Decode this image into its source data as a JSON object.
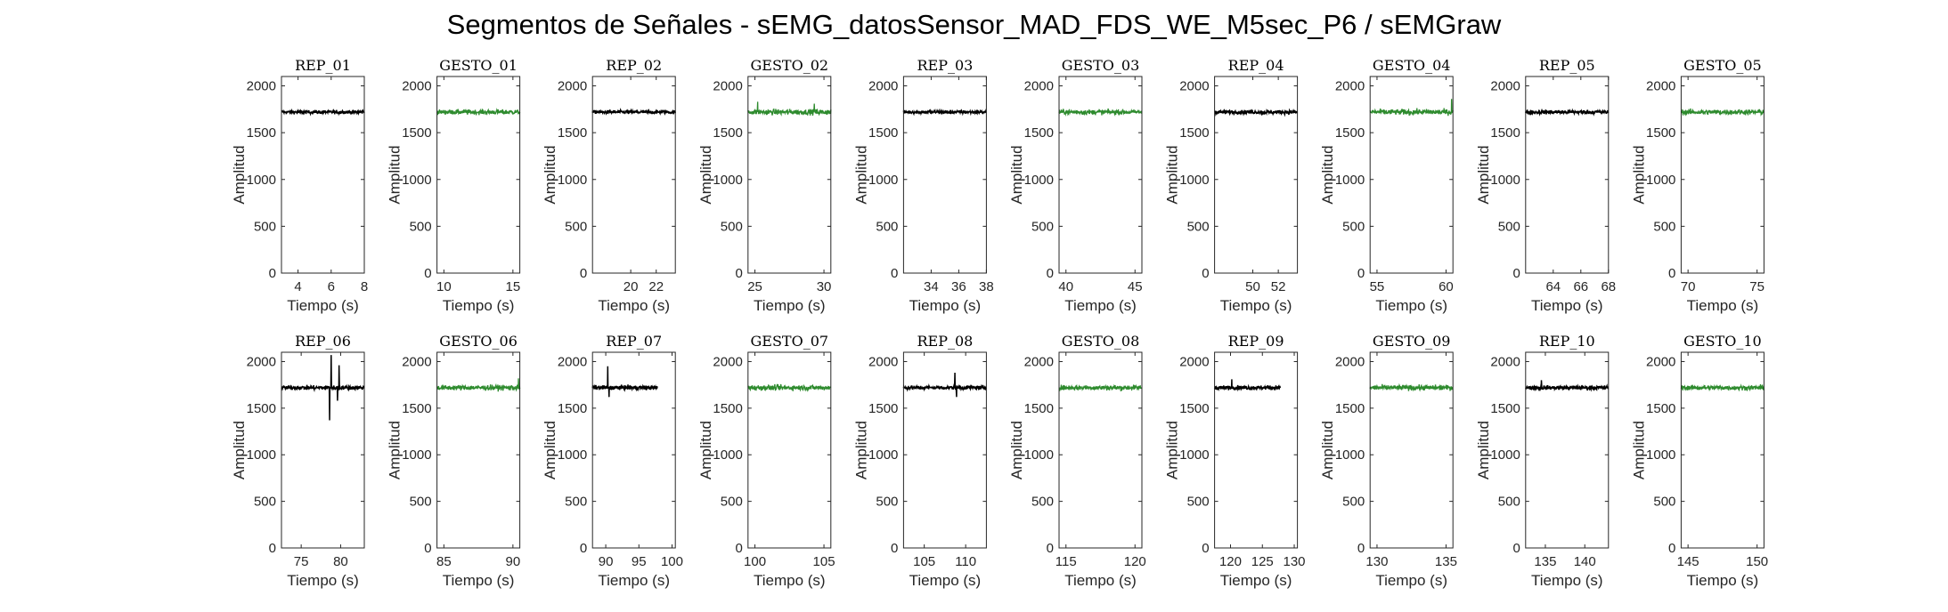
{
  "figure": {
    "title": "Segmentos de Señales - sEMG_datosSensor_MAD_FDS_WE_M5sec_P6 / sEMGraw"
  },
  "colors": {
    "rep": "#000000",
    "gesto": "#2e8b2e",
    "axis": "#262626"
  },
  "chart_data": [
    {
      "type": "line",
      "title": "REP_01",
      "kind": "rep",
      "xlabel": "Tiempo (s)",
      "ylabel": "Amplitud",
      "xlim": [
        3,
        8
      ],
      "ylim": [
        0,
        2100
      ],
      "xticks": [
        4,
        6,
        8
      ],
      "yticks": [
        0,
        500,
        1000,
        1500,
        2000
      ],
      "data_x": [
        3,
        8
      ],
      "mean": 1720,
      "noise": 20,
      "spikes": []
    },
    {
      "type": "line",
      "title": "GESTO_01",
      "kind": "gesto",
      "xlabel": "Tiempo (s)",
      "ylabel": "Amplitud",
      "xlim": [
        9.5,
        15.5
      ],
      "ylim": [
        0,
        2100
      ],
      "xticks": [
        10,
        15
      ],
      "yticks": [
        0,
        500,
        1000,
        1500,
        2000
      ],
      "data_x": [
        9.5,
        15.5
      ],
      "mean": 1720,
      "noise": 28,
      "spikes": []
    },
    {
      "type": "line",
      "title": "REP_02",
      "kind": "rep",
      "xlabel": "Tiempo (s)",
      "ylabel": "Amplitud",
      "xlim": [
        17,
        23.5
      ],
      "ylim": [
        0,
        2100
      ],
      "xticks": [
        20,
        22
      ],
      "yticks": [
        0,
        500,
        1000,
        1500,
        2000
      ],
      "data_x": [
        17,
        23.5
      ],
      "mean": 1720,
      "noise": 20,
      "spikes": []
    },
    {
      "type": "line",
      "title": "GESTO_02",
      "kind": "gesto",
      "xlabel": "Tiempo (s)",
      "ylabel": "Amplitud",
      "xlim": [
        24.5,
        30.5
      ],
      "ylim": [
        0,
        2100
      ],
      "xticks": [
        25,
        30
      ],
      "yticks": [
        0,
        500,
        1000,
        1500,
        2000
      ],
      "data_x": [
        24.5,
        30.5
      ],
      "mean": 1720,
      "noise": 32,
      "spikes": [
        {
          "x": 25.2,
          "y": 1830
        },
        {
          "x": 29.3,
          "y": 1810
        }
      ]
    },
    {
      "type": "line",
      "title": "REP_03",
      "kind": "rep",
      "xlabel": "Tiempo (s)",
      "ylabel": "Amplitud",
      "xlim": [
        32,
        38
      ],
      "ylim": [
        0,
        2100
      ],
      "xticks": [
        34,
        36,
        38
      ],
      "yticks": [
        0,
        500,
        1000,
        1500,
        2000
      ],
      "data_x": [
        32,
        38
      ],
      "mean": 1720,
      "noise": 20,
      "spikes": []
    },
    {
      "type": "line",
      "title": "GESTO_03",
      "kind": "gesto",
      "xlabel": "Tiempo (s)",
      "ylabel": "Amplitud",
      "xlim": [
        39.5,
        45.5
      ],
      "ylim": [
        0,
        2100
      ],
      "xticks": [
        40,
        45
      ],
      "yticks": [
        0,
        500,
        1000,
        1500,
        2000
      ],
      "data_x": [
        39.5,
        45.5
      ],
      "mean": 1720,
      "noise": 28,
      "spikes": []
    },
    {
      "type": "line",
      "title": "REP_04",
      "kind": "rep",
      "xlabel": "Tiempo (s)",
      "ylabel": "Amplitud",
      "xlim": [
        47,
        53.5
      ],
      "ylim": [
        0,
        2100
      ],
      "xticks": [
        50,
        52
      ],
      "yticks": [
        0,
        500,
        1000,
        1500,
        2000
      ],
      "data_x": [
        47,
        53.5
      ],
      "mean": 1720,
      "noise": 22,
      "spikes": []
    },
    {
      "type": "line",
      "title": "GESTO_04",
      "kind": "gesto",
      "xlabel": "Tiempo (s)",
      "ylabel": "Amplitud",
      "xlim": [
        54.5,
        60.5
      ],
      "ylim": [
        0,
        2100
      ],
      "xticks": [
        55,
        60
      ],
      "yticks": [
        0,
        500,
        1000,
        1500,
        2000
      ],
      "data_x": [
        54.5,
        60.5
      ],
      "mean": 1720,
      "noise": 32,
      "spikes": [
        {
          "x": 60.4,
          "y": 1860
        }
      ]
    },
    {
      "type": "line",
      "title": "REP_05",
      "kind": "rep",
      "xlabel": "Tiempo (s)",
      "ylabel": "Amplitud",
      "xlim": [
        62,
        68
      ],
      "ylim": [
        0,
        2100
      ],
      "xticks": [
        64,
        66,
        68
      ],
      "yticks": [
        0,
        500,
        1000,
        1500,
        2000
      ],
      "data_x": [
        62,
        68
      ],
      "mean": 1720,
      "noise": 24,
      "spikes": []
    },
    {
      "type": "line",
      "title": "GESTO_05",
      "kind": "gesto",
      "xlabel": "Tiempo (s)",
      "ylabel": "Amplitud",
      "xlim": [
        69.5,
        75.5
      ],
      "ylim": [
        0,
        2100
      ],
      "xticks": [
        70,
        75
      ],
      "yticks": [
        0,
        500,
        1000,
        1500,
        2000
      ],
      "data_x": [
        69.5,
        75.5
      ],
      "mean": 1720,
      "noise": 30,
      "spikes": []
    },
    {
      "type": "line",
      "title": "REP_06",
      "kind": "rep",
      "xlabel": "Tiempo (s)",
      "ylabel": "Amplitud",
      "xlim": [
        72.5,
        83
      ],
      "ylim": [
        0,
        2100
      ],
      "xticks": [
        75,
        80
      ],
      "yticks": [
        0,
        500,
        1000,
        1500,
        2000
      ],
      "data_x": [
        72.5,
        83
      ],
      "mean": 1720,
      "noise": 24,
      "spikes": [
        {
          "x": 78.6,
          "y": 1370
        },
        {
          "x": 78.8,
          "y": 2070
        },
        {
          "x": 79.6,
          "y": 1580
        },
        {
          "x": 79.8,
          "y": 1960
        }
      ]
    },
    {
      "type": "line",
      "title": "GESTO_06",
      "kind": "gesto",
      "xlabel": "Tiempo (s)",
      "ylabel": "Amplitud",
      "xlim": [
        84.5,
        90.5
      ],
      "ylim": [
        0,
        2100
      ],
      "xticks": [
        85,
        90
      ],
      "yticks": [
        0,
        500,
        1000,
        1500,
        2000
      ],
      "data_x": [
        84.5,
        90.5
      ],
      "mean": 1720,
      "noise": 30,
      "spikes": [
        {
          "x": 90.4,
          "y": 1820
        }
      ]
    },
    {
      "type": "line",
      "title": "REP_07",
      "kind": "rep",
      "xlabel": "Tiempo (s)",
      "ylabel": "Amplitud",
      "xlim": [
        88,
        100.5
      ],
      "ylim": [
        0,
        2100
      ],
      "xticks": [
        90,
        95,
        100
      ],
      "yticks": [
        0,
        500,
        1000,
        1500,
        2000
      ],
      "data_x": [
        88,
        97.8
      ],
      "mean": 1720,
      "noise": 24,
      "spikes": [
        {
          "x": 90.3,
          "y": 1950
        },
        {
          "x": 90.5,
          "y": 1620
        }
      ]
    },
    {
      "type": "line",
      "title": "GESTO_07",
      "kind": "gesto",
      "xlabel": "Tiempo (s)",
      "ylabel": "Amplitud",
      "xlim": [
        99.5,
        105.5
      ],
      "ylim": [
        0,
        2100
      ],
      "xticks": [
        100,
        105
      ],
      "yticks": [
        0,
        500,
        1000,
        1500,
        2000
      ],
      "data_x": [
        99.5,
        105.5
      ],
      "mean": 1720,
      "noise": 30,
      "spikes": []
    },
    {
      "type": "line",
      "title": "REP_08",
      "kind": "rep",
      "xlabel": "Tiempo (s)",
      "ylabel": "Amplitud",
      "xlim": [
        102.5,
        112.5
      ],
      "ylim": [
        0,
        2100
      ],
      "xticks": [
        105,
        110
      ],
      "yticks": [
        0,
        500,
        1000,
        1500,
        2000
      ],
      "data_x": [
        102.5,
        112.5
      ],
      "mean": 1720,
      "noise": 22,
      "spikes": [
        {
          "x": 108.7,
          "y": 1880
        },
        {
          "x": 108.9,
          "y": 1620
        }
      ]
    },
    {
      "type": "line",
      "title": "GESTO_08",
      "kind": "gesto",
      "xlabel": "Tiempo (s)",
      "ylabel": "Amplitud",
      "xlim": [
        114.5,
        120.5
      ],
      "ylim": [
        0,
        2100
      ],
      "xticks": [
        115,
        120
      ],
      "yticks": [
        0,
        500,
        1000,
        1500,
        2000
      ],
      "data_x": [
        114.5,
        120.5
      ],
      "mean": 1720,
      "noise": 30,
      "spikes": []
    },
    {
      "type": "line",
      "title": "REP_09",
      "kind": "rep",
      "xlabel": "Tiempo (s)",
      "ylabel": "Amplitud",
      "xlim": [
        117.5,
        130.5
      ],
      "ylim": [
        0,
        2100
      ],
      "xticks": [
        120,
        125,
        130
      ],
      "yticks": [
        0,
        500,
        1000,
        1500,
        2000
      ],
      "data_x": [
        117.5,
        127.8
      ],
      "mean": 1720,
      "noise": 24,
      "spikes": [
        {
          "x": 120.2,
          "y": 1810
        }
      ]
    },
    {
      "type": "line",
      "title": "GESTO_09",
      "kind": "gesto",
      "xlabel": "Tiempo (s)",
      "ylabel": "Amplitud",
      "xlim": [
        129.5,
        135.5
      ],
      "ylim": [
        0,
        2100
      ],
      "xticks": [
        130,
        135
      ],
      "yticks": [
        0,
        500,
        1000,
        1500,
        2000
      ],
      "data_x": [
        129.5,
        135.5
      ],
      "mean": 1720,
      "noise": 30,
      "spikes": []
    },
    {
      "type": "line",
      "title": "REP_10",
      "kind": "rep",
      "xlabel": "Tiempo (s)",
      "ylabel": "Amplitud",
      "xlim": [
        132.5,
        143
      ],
      "ylim": [
        0,
        2100
      ],
      "xticks": [
        135,
        140
      ],
      "yticks": [
        0,
        500,
        1000,
        1500,
        2000
      ],
      "data_x": [
        132.5,
        143
      ],
      "mean": 1720,
      "noise": 24,
      "spikes": [
        {
          "x": 134.5,
          "y": 1800
        }
      ]
    },
    {
      "type": "line",
      "title": "GESTO_10",
      "kind": "gesto",
      "xlabel": "Tiempo (s)",
      "ylabel": "Amplitud",
      "xlim": [
        144.5,
        150.5
      ],
      "ylim": [
        0,
        2100
      ],
      "xticks": [
        145,
        150
      ],
      "yticks": [
        0,
        500,
        1000,
        1500,
        2000
      ],
      "data_x": [
        144.5,
        150.5
      ],
      "mean": 1720,
      "noise": 28,
      "spikes": []
    }
  ]
}
